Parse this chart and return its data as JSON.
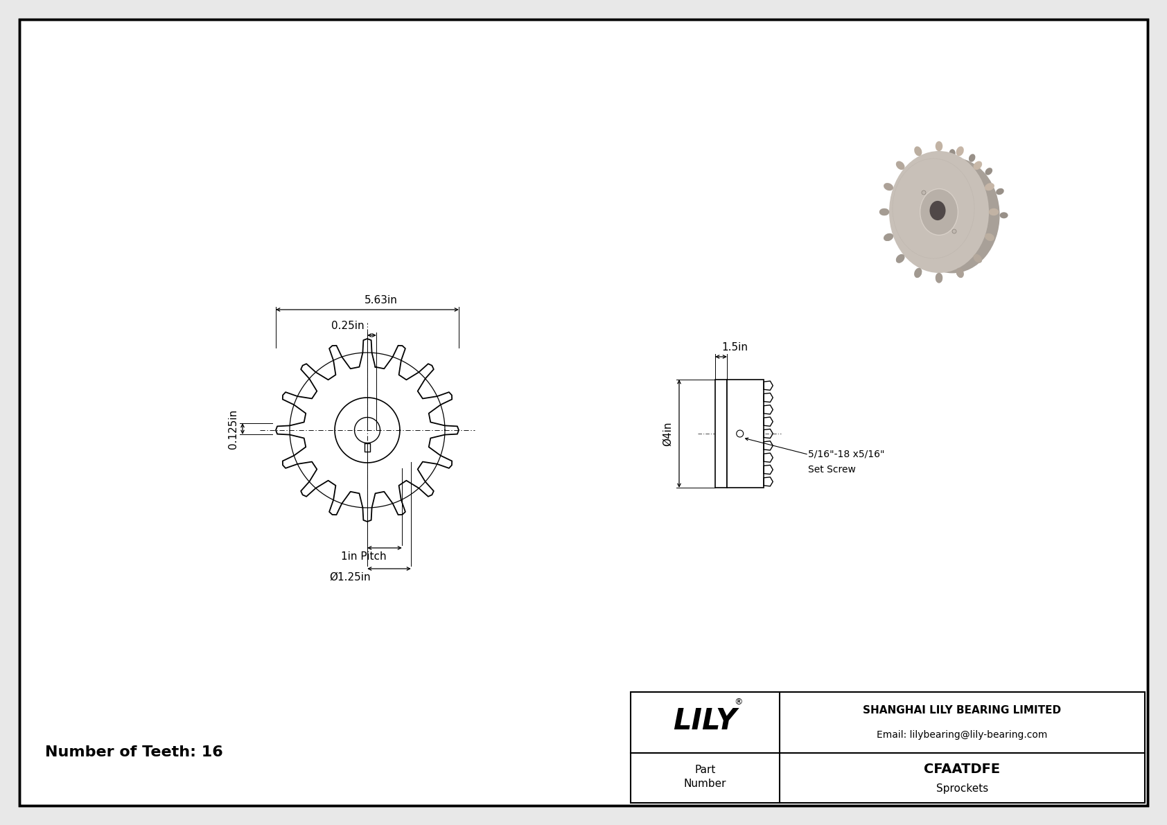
{
  "bg_color": "#e8e8e8",
  "white": "#ffffff",
  "black": "#000000",
  "title_teeth": "Number of Teeth: 16",
  "dim_5_63": "5.63in",
  "dim_0_25": "0.25in",
  "dim_0_125": "0.125in",
  "dim_1_5": "1.5in",
  "dim_4": "Ø4in",
  "dim_pitch": "1in Pitch",
  "dim_bore": "Ø1.25in",
  "dim_screw": "5/16\"-18 x5/16\"",
  "dim_screw2": "Set Screw",
  "lily_text": "LILY",
  "lily_reg": "®",
  "company": "SHANGHAI LILY BEARING LIMITED",
  "email": "Email: lilybearing@lily-bearing.com",
  "part_label": "Part\nNumber",
  "part_number": "CFAATDFE",
  "part_type": "Sprockets",
  "num_teeth": 16,
  "gray1": "#b8b0a8",
  "gray2": "#c8c0b8",
  "gray3": "#a8a098",
  "gray4": "#989088",
  "gray5": "#888078",
  "dark_gray": "#504848"
}
